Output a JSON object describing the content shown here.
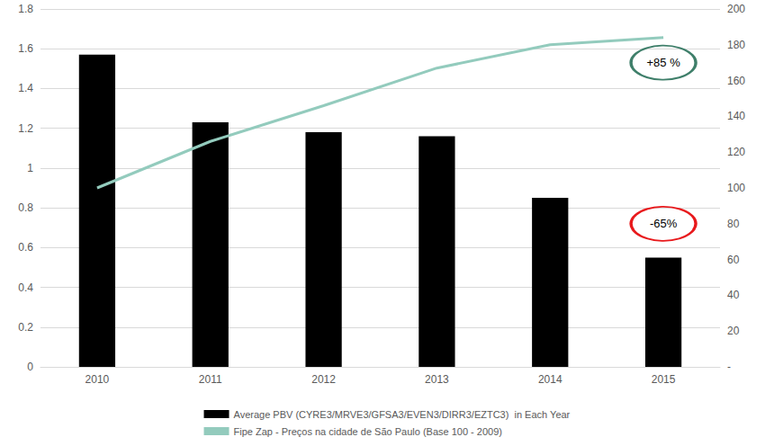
{
  "chart_data": {
    "type": "bar",
    "categories": [
      "2010",
      "2011",
      "2012",
      "2013",
      "2014",
      "2015"
    ],
    "series": [
      {
        "name": "Average PBV (CYRE3/MRVE3/GFSA3/EVEN3/DIRR3/EZTC3)  in Each Year",
        "type": "bar",
        "color": "#000000",
        "values": [
          1.57,
          1.23,
          1.18,
          1.16,
          0.85,
          0.55
        ]
      },
      {
        "name": "Fipe Zap - Preços na cidade de São Paulo (Base 100 - 2009)",
        "type": "line",
        "axis": "y2",
        "color": "#93cbbd",
        "values": [
          100,
          126,
          146,
          167,
          180,
          184
        ]
      }
    ],
    "ylim": [
      0,
      1.8
    ],
    "yticks": [
      0,
      0.2,
      0.4,
      0.6,
      0.8,
      1,
      1.2,
      1.4,
      1.6,
      1.8
    ],
    "y2lim": [
      0,
      200
    ],
    "y2ticks": [
      {
        "value": 0,
        "label": "-"
      },
      20,
      40,
      60,
      80,
      100,
      120,
      140,
      160,
      180,
      200
    ],
    "annotations": [
      {
        "text": "+85 %",
        "x": "2015",
        "y": 170,
        "axis": "y2",
        "color": "#3f7f6a"
      },
      {
        "text": "-65%",
        "x": "2015",
        "y": 0.72,
        "axis": "y",
        "color": "#e8191c"
      }
    ],
    "grid": true,
    "legend": "bottom"
  }
}
